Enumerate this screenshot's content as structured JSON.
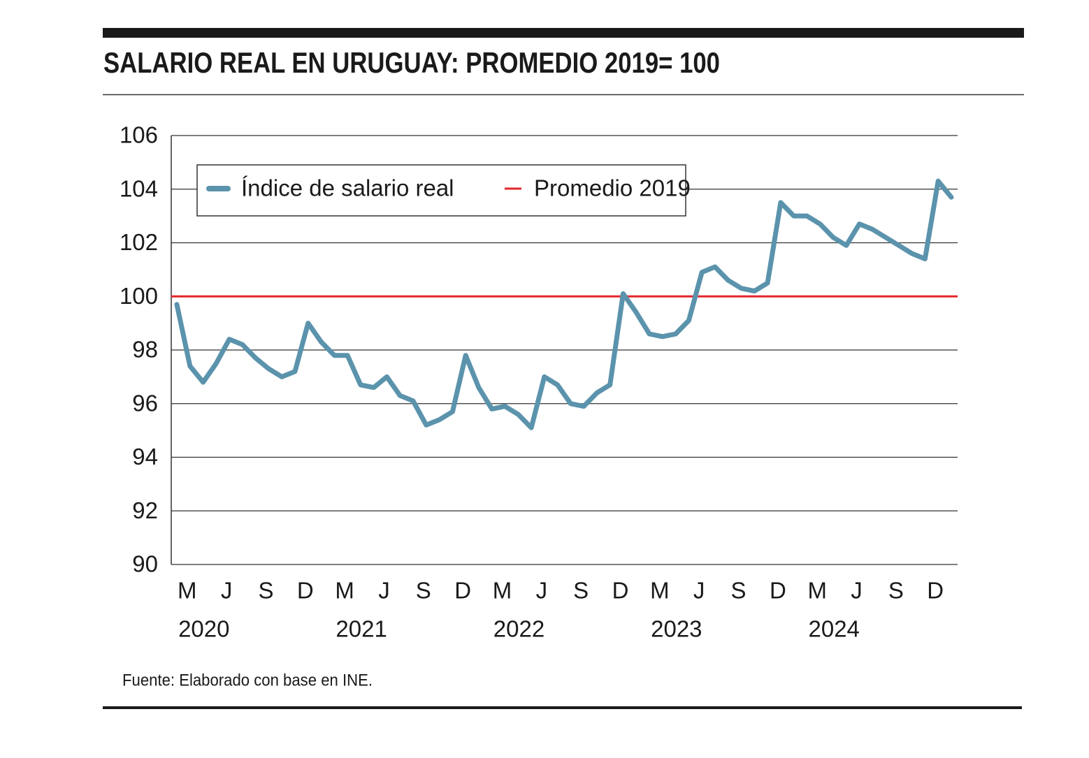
{
  "chart_data": {
    "type": "line",
    "title": "SALARIO REAL EN URUGUAY: PROMEDIO 2019= 100",
    "source": "Fuente: Elaborado con base en INE.",
    "categories": [
      null,
      "M",
      null,
      null,
      "J",
      null,
      null,
      "S",
      null,
      null,
      "D",
      null,
      null,
      "M",
      null,
      null,
      "J",
      null,
      null,
      "S",
      null,
      null,
      "D",
      null,
      null,
      "M",
      null,
      null,
      "J",
      null,
      null,
      "S",
      null,
      null,
      "D",
      null,
      null,
      "M",
      null,
      null,
      "J",
      null,
      null,
      "S",
      null,
      null,
      "D",
      null,
      null,
      "M",
      null,
      null,
      "J",
      null,
      null,
      "S",
      null,
      null,
      "D",
      null
    ],
    "years": [
      "2020",
      "2021",
      "2022",
      "2023",
      "2024"
    ],
    "series": [
      {
        "name": "Índice de salario real",
        "color": "#5b93ac",
        "values": [
          99.7,
          97.4,
          96.8,
          97.5,
          98.4,
          98.2,
          97.7,
          97.3,
          97.0,
          97.2,
          99.0,
          98.3,
          97.8,
          97.8,
          96.7,
          96.6,
          97.0,
          96.3,
          96.1,
          95.2,
          95.4,
          95.7,
          97.8,
          96.6,
          95.8,
          95.9,
          95.6,
          95.1,
          97.0,
          96.7,
          96.0,
          95.9,
          96.4,
          96.7,
          100.1,
          99.4,
          98.6,
          98.5,
          98.6,
          99.1,
          100.9,
          101.1,
          100.6,
          100.3,
          100.2,
          100.5,
          103.5,
          103.0,
          103.0,
          102.7,
          102.2,
          101.9,
          102.7,
          102.5,
          102.2,
          101.9,
          101.6,
          101.4,
          104.3,
          103.7
        ]
      }
    ],
    "reference_lines": [
      {
        "name": "Promedio 2019",
        "value": 100,
        "color": "#e3262b"
      }
    ],
    "ylim": [
      90,
      106
    ],
    "yticks": [
      90,
      92,
      94,
      96,
      98,
      100,
      102,
      104,
      106
    ],
    "grid": true
  }
}
